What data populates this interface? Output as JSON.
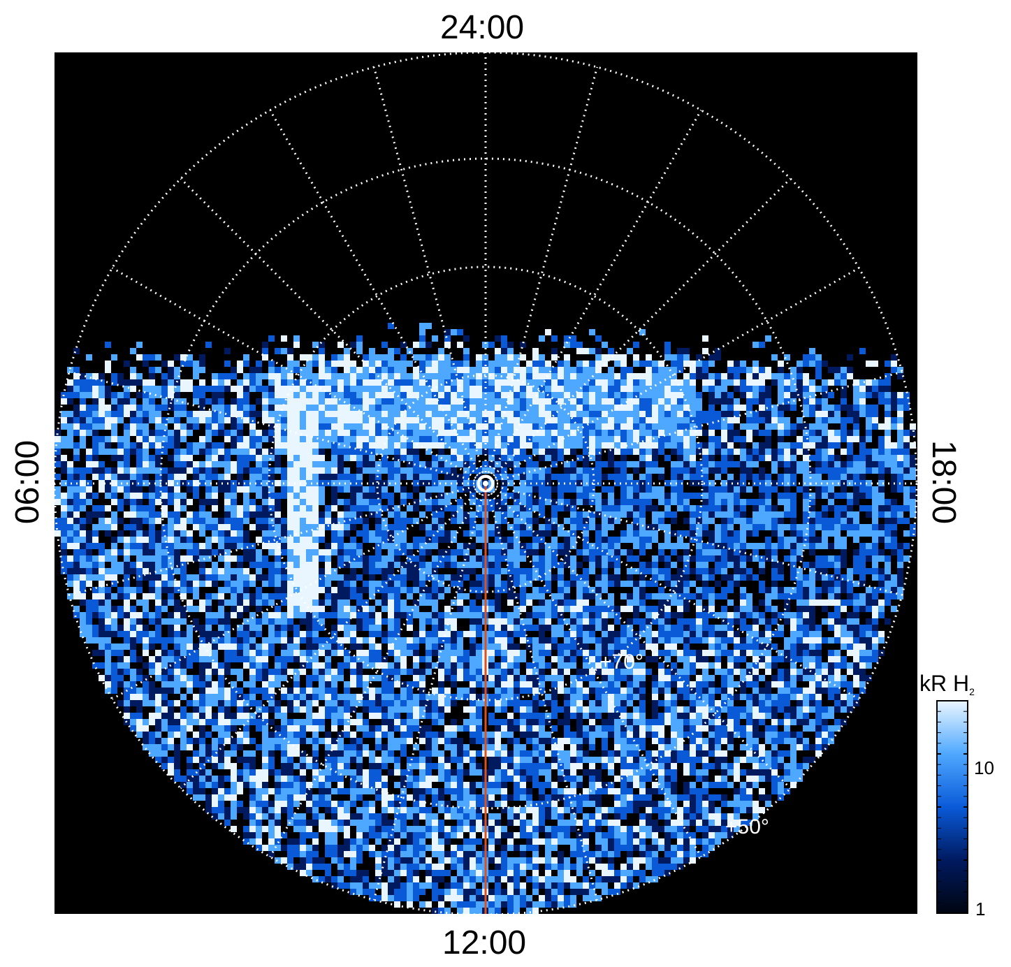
{
  "labels": {
    "top": "24:00",
    "bottom": "12:00",
    "left": "06:00",
    "right": "18:00",
    "lat_70": "+70°",
    "lat_50": "+50°"
  },
  "colorbar": {
    "title": "kR H",
    "title_sub": "2",
    "ticks": [
      "10",
      "1"
    ],
    "colors": [
      "#000510",
      "#001a60",
      "#0a5ad8",
      "#4fa8ff",
      "#eaf6ff"
    ]
  },
  "colors": {
    "background": "#000000",
    "grid": "#ffffff",
    "meridian_line": "#e0501a"
  }
}
